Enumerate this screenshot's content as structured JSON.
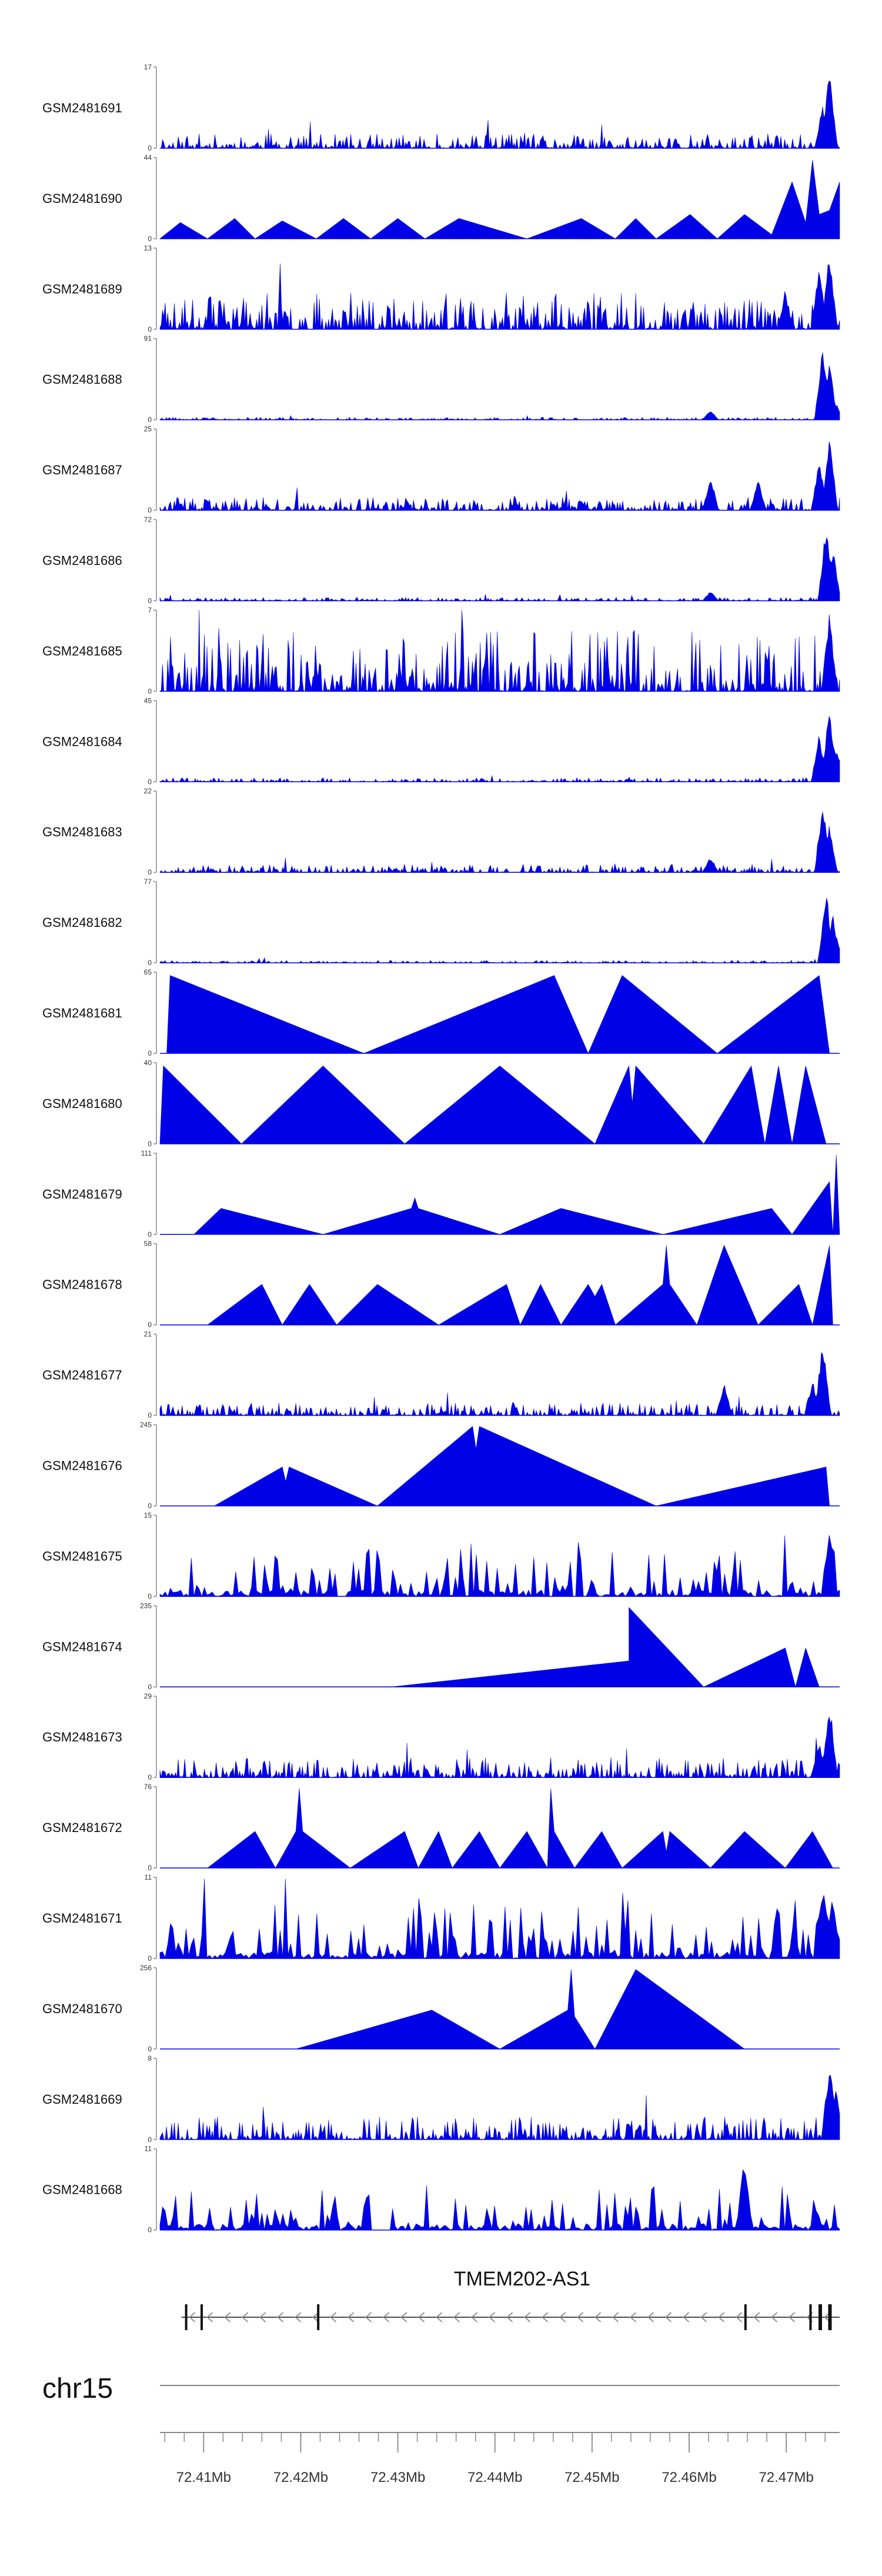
{
  "chart_data": {
    "type": "area",
    "title": "",
    "xlabel": "",
    "ylabel": "",
    "x_range_mb": [
      72.4055,
      72.4755
    ],
    "colors": {
      "signal": "#0000e6",
      "axis": "#888888",
      "gene": "#111111",
      "text": "#111111"
    },
    "tracks": [
      {
        "name": "GSM2481691",
        "ymax": "17",
        "ymin": "0",
        "pattern": "noisy",
        "scale": 0.18,
        "peaks": [
          [
            0.985,
            1.0
          ],
          [
            0.975,
            0.55
          ]
        ],
        "seed": 11
      },
      {
        "name": "GSM2481690",
        "ymax": "44",
        "ymin": "0",
        "pattern": "triangles",
        "vertices": [
          [
            0.0,
            0.0
          ],
          [
            0.03,
            0.2
          ],
          [
            0.07,
            0.0
          ],
          [
            0.11,
            0.25
          ],
          [
            0.14,
            0.0
          ],
          [
            0.18,
            0.22
          ],
          [
            0.23,
            0.0
          ],
          [
            0.27,
            0.25
          ],
          [
            0.31,
            0.0
          ],
          [
            0.35,
            0.25
          ],
          [
            0.39,
            0.0
          ],
          [
            0.44,
            0.25
          ],
          [
            0.54,
            0.0
          ],
          [
            0.62,
            0.25
          ],
          [
            0.67,
            0.0
          ],
          [
            0.7,
            0.25
          ],
          [
            0.73,
            0.0
          ],
          [
            0.78,
            0.3
          ],
          [
            0.82,
            0.0
          ],
          [
            0.86,
            0.3
          ],
          [
            0.9,
            0.05
          ],
          [
            0.93,
            0.7
          ],
          [
            0.95,
            0.2
          ],
          [
            0.96,
            0.97
          ],
          [
            0.97,
            0.3
          ],
          [
            0.985,
            0.35
          ],
          [
            1.0,
            0.7
          ]
        ]
      },
      {
        "name": "GSM2481689",
        "ymax": "13",
        "ymin": "0",
        "pattern": "noisy",
        "scale": 0.45,
        "peaks": [
          [
            0.985,
            1.0
          ],
          [
            0.97,
            0.8
          ],
          [
            0.92,
            0.5
          ]
        ],
        "seed": 23
      },
      {
        "name": "GSM2481688",
        "ymax": "91",
        "ymin": "0",
        "pattern": "noisy",
        "scale": 0.03,
        "peaks": [
          [
            0.975,
            0.95
          ],
          [
            0.985,
            0.75
          ],
          [
            0.995,
            0.2
          ],
          [
            0.81,
            0.12
          ]
        ],
        "seed": 31
      },
      {
        "name": "GSM2481687",
        "ymax": "25",
        "ymin": "0",
        "pattern": "noisy",
        "scale": 0.16,
        "peaks": [
          [
            0.985,
            1.0
          ],
          [
            0.97,
            0.7
          ],
          [
            0.81,
            0.45
          ],
          [
            0.88,
            0.4
          ]
        ],
        "seed": 37
      },
      {
        "name": "GSM2481686",
        "ymax": "72",
        "ymin": "0",
        "pattern": "noisy",
        "scale": 0.04,
        "peaks": [
          [
            0.98,
            0.98
          ],
          [
            0.99,
            0.7
          ],
          [
            0.81,
            0.12
          ]
        ],
        "seed": 41
      },
      {
        "name": "GSM2481685",
        "ymax": "7",
        "ymin": "0",
        "pattern": "noisy",
        "scale": 0.75,
        "peaks": [
          [
            0.985,
            1.0
          ]
        ],
        "seed": 43
      },
      {
        "name": "GSM2481684",
        "ymax": "45",
        "ymin": "0",
        "pattern": "noisy",
        "scale": 0.05,
        "peaks": [
          [
            0.985,
            1.0
          ],
          [
            0.97,
            0.6
          ],
          [
            0.995,
            0.45
          ]
        ],
        "seed": 47
      },
      {
        "name": "GSM2481683",
        "ymax": "22",
        "ymin": "0",
        "pattern": "noisy",
        "scale": 0.1,
        "peaks": [
          [
            0.975,
            0.95
          ],
          [
            0.985,
            0.6
          ],
          [
            0.81,
            0.2
          ]
        ],
        "seed": 53
      },
      {
        "name": "GSM2481682",
        "ymax": "77",
        "ymin": "0",
        "pattern": "noisy",
        "scale": 0.03,
        "peaks": [
          [
            0.98,
            0.98
          ],
          [
            0.99,
            0.65
          ],
          [
            0.995,
            0.3
          ]
        ],
        "seed": 59
      },
      {
        "name": "GSM2481681",
        "ymax": "65",
        "ymin": "0",
        "pattern": "triangles",
        "vertices": [
          [
            0.01,
            0.0
          ],
          [
            0.015,
            0.96
          ],
          [
            0.3,
            0.0
          ],
          [
            0.58,
            0.96
          ],
          [
            0.63,
            0.0
          ],
          [
            0.68,
            0.96
          ],
          [
            0.82,
            0.0
          ],
          [
            0.97,
            0.96
          ],
          [
            0.985,
            0.0
          ]
        ]
      },
      {
        "name": "GSM2481680",
        "ymax": "40",
        "ymin": "0",
        "pattern": "triangles",
        "vertices": [
          [
            0.0,
            0.0
          ],
          [
            0.005,
            0.96
          ],
          [
            0.12,
            0.0
          ],
          [
            0.24,
            0.96
          ],
          [
            0.36,
            0.0
          ],
          [
            0.5,
            0.96
          ],
          [
            0.64,
            0.0
          ],
          [
            0.69,
            0.96
          ],
          [
            0.695,
            0.5
          ],
          [
            0.7,
            0.96
          ],
          [
            0.8,
            0.0
          ],
          [
            0.87,
            0.96
          ],
          [
            0.89,
            0.0
          ],
          [
            0.91,
            0.96
          ],
          [
            0.93,
            0.0
          ],
          [
            0.95,
            0.96
          ],
          [
            0.98,
            0.0
          ]
        ]
      },
      {
        "name": "GSM2481679",
        "ymax": "111",
        "ymin": "0",
        "pattern": "triangles",
        "vertices": [
          [
            0.05,
            0.0
          ],
          [
            0.09,
            0.32
          ],
          [
            0.24,
            0.0
          ],
          [
            0.37,
            0.32
          ],
          [
            0.375,
            0.45
          ],
          [
            0.38,
            0.32
          ],
          [
            0.5,
            0.0
          ],
          [
            0.59,
            0.32
          ],
          [
            0.74,
            0.0
          ],
          [
            0.9,
            0.32
          ],
          [
            0.93,
            0.0
          ],
          [
            0.985,
            0.65
          ],
          [
            0.99,
            0.0
          ],
          [
            0.995,
            0.98
          ],
          [
            1.0,
            0.0
          ]
        ]
      },
      {
        "name": "GSM2481678",
        "ymax": "58",
        "ymin": "0",
        "pattern": "triangles",
        "vertices": [
          [
            0.07,
            0.0
          ],
          [
            0.15,
            0.5
          ],
          [
            0.18,
            0.0
          ],
          [
            0.22,
            0.5
          ],
          [
            0.26,
            0.0
          ],
          [
            0.32,
            0.5
          ],
          [
            0.41,
            0.0
          ],
          [
            0.51,
            0.5
          ],
          [
            0.53,
            0.0
          ],
          [
            0.56,
            0.5
          ],
          [
            0.59,
            0.0
          ],
          [
            0.63,
            0.5
          ],
          [
            0.64,
            0.35
          ],
          [
            0.65,
            0.5
          ],
          [
            0.67,
            0.0
          ],
          [
            0.74,
            0.5
          ],
          [
            0.745,
            0.98
          ],
          [
            0.75,
            0.5
          ],
          [
            0.79,
            0.0
          ],
          [
            0.83,
            0.98
          ],
          [
            0.88,
            0.0
          ],
          [
            0.94,
            0.5
          ],
          [
            0.96,
            0.0
          ],
          [
            0.985,
            0.98
          ],
          [
            0.99,
            0.0
          ]
        ]
      },
      {
        "name": "GSM2481677",
        "ymax": "21",
        "ymin": "0",
        "pattern": "noisy",
        "scale": 0.16,
        "peaks": [
          [
            0.975,
            1.0
          ],
          [
            0.96,
            0.45
          ],
          [
            0.83,
            0.4
          ]
        ],
        "seed": 61
      },
      {
        "name": "GSM2481676",
        "ymax": "245",
        "ymin": "0",
        "pattern": "triangles",
        "vertices": [
          [
            0.08,
            0.0
          ],
          [
            0.18,
            0.48
          ],
          [
            0.185,
            0.3
          ],
          [
            0.19,
            0.48
          ],
          [
            0.32,
            0.0
          ],
          [
            0.46,
            0.98
          ],
          [
            0.465,
            0.7
          ],
          [
            0.47,
            0.98
          ],
          [
            0.73,
            0.0
          ],
          [
            0.98,
            0.48
          ],
          [
            0.985,
            0.0
          ]
        ]
      },
      {
        "name": "GSM2481675",
        "ymax": "15",
        "ymin": "0",
        "pattern": "spiky",
        "scale": 0.65,
        "peaks": [
          [
            0.985,
            1.0
          ]
        ],
        "seed": 67
      },
      {
        "name": "GSM2481674",
        "ymax": "235",
        "ymin": "0",
        "pattern": "triangles",
        "vertices": [
          [
            0.34,
            0.0
          ],
          [
            0.69,
            0.32
          ],
          [
            0.69,
            0.98
          ],
          [
            0.8,
            0.0
          ],
          [
            0.92,
            0.48
          ],
          [
            0.935,
            0.0
          ],
          [
            0.95,
            0.48
          ],
          [
            0.97,
            0.0
          ]
        ]
      },
      {
        "name": "GSM2481673",
        "ymax": "29",
        "ymin": "0",
        "pattern": "noisy",
        "scale": 0.25,
        "peaks": [
          [
            0.985,
            1.0
          ],
          [
            0.97,
            0.45
          ]
        ],
        "seed": 71
      },
      {
        "name": "GSM2481672",
        "ymax": "76",
        "ymin": "0",
        "pattern": "triangles",
        "vertices": [
          [
            0.07,
            0.0
          ],
          [
            0.14,
            0.45
          ],
          [
            0.17,
            0.0
          ],
          [
            0.2,
            0.45
          ],
          [
            0.205,
            0.98
          ],
          [
            0.21,
            0.45
          ],
          [
            0.28,
            0.0
          ],
          [
            0.36,
            0.45
          ],
          [
            0.38,
            0.0
          ],
          [
            0.41,
            0.45
          ],
          [
            0.43,
            0.0
          ],
          [
            0.47,
            0.45
          ],
          [
            0.5,
            0.0
          ],
          [
            0.54,
            0.45
          ],
          [
            0.57,
            0.0
          ],
          [
            0.575,
            0.98
          ],
          [
            0.58,
            0.45
          ],
          [
            0.61,
            0.0
          ],
          [
            0.65,
            0.45
          ],
          [
            0.68,
            0.0
          ],
          [
            0.74,
            0.45
          ],
          [
            0.745,
            0.2
          ],
          [
            0.75,
            0.45
          ],
          [
            0.81,
            0.0
          ],
          [
            0.86,
            0.45
          ],
          [
            0.92,
            0.0
          ],
          [
            0.96,
            0.45
          ],
          [
            0.99,
            0.0
          ]
        ]
      },
      {
        "name": "GSM2481671",
        "ymax": "11",
        "ymin": "0",
        "pattern": "spiky",
        "scale": 0.75,
        "peaks": [
          [
            0.975,
            1.0
          ],
          [
            0.99,
            0.9
          ]
        ],
        "seed": 73
      },
      {
        "name": "GSM2481670",
        "ymax": "256",
        "ymin": "0",
        "pattern": "triangles",
        "vertices": [
          [
            0.2,
            0.0
          ],
          [
            0.4,
            0.48
          ],
          [
            0.5,
            0.0
          ],
          [
            0.6,
            0.48
          ],
          [
            0.605,
            0.98
          ],
          [
            0.61,
            0.4
          ],
          [
            0.64,
            0.0
          ],
          [
            0.7,
            0.98
          ],
          [
            0.86,
            0.0
          ]
        ]
      },
      {
        "name": "GSM2481669",
        "ymax": "8",
        "ymin": "0",
        "pattern": "noisy",
        "scale": 0.28,
        "peaks": [
          [
            0.985,
            1.0
          ],
          [
            0.995,
            0.7
          ]
        ],
        "seed": 79
      },
      {
        "name": "GSM2481668",
        "ymax": "11",
        "ymin": "0",
        "pattern": "spiky",
        "scale": 0.55,
        "gaps": [
          [
            0.31,
            0.34
          ]
        ],
        "peaks": [
          [
            0.86,
            0.98
          ]
        ],
        "seed": 83
      }
    ],
    "gene": {
      "name": "TMEM202-AS1",
      "start_mb": 72.4082,
      "end_mb": 72.4755,
      "strand": "-",
      "exons_mb": [
        72.4082,
        72.4098,
        72.4218,
        72.4658,
        72.4725,
        72.4735,
        72.4745
      ]
    },
    "chromosome": "chr15",
    "x_ticks": [
      "72.41Mb",
      "72.42Mb",
      "72.43Mb",
      "72.44Mb",
      "72.45Mb",
      "72.46Mb",
      "72.47Mb"
    ],
    "x_tick_values": [
      72.41,
      72.42,
      72.43,
      72.44,
      72.45,
      72.46,
      72.47
    ]
  }
}
